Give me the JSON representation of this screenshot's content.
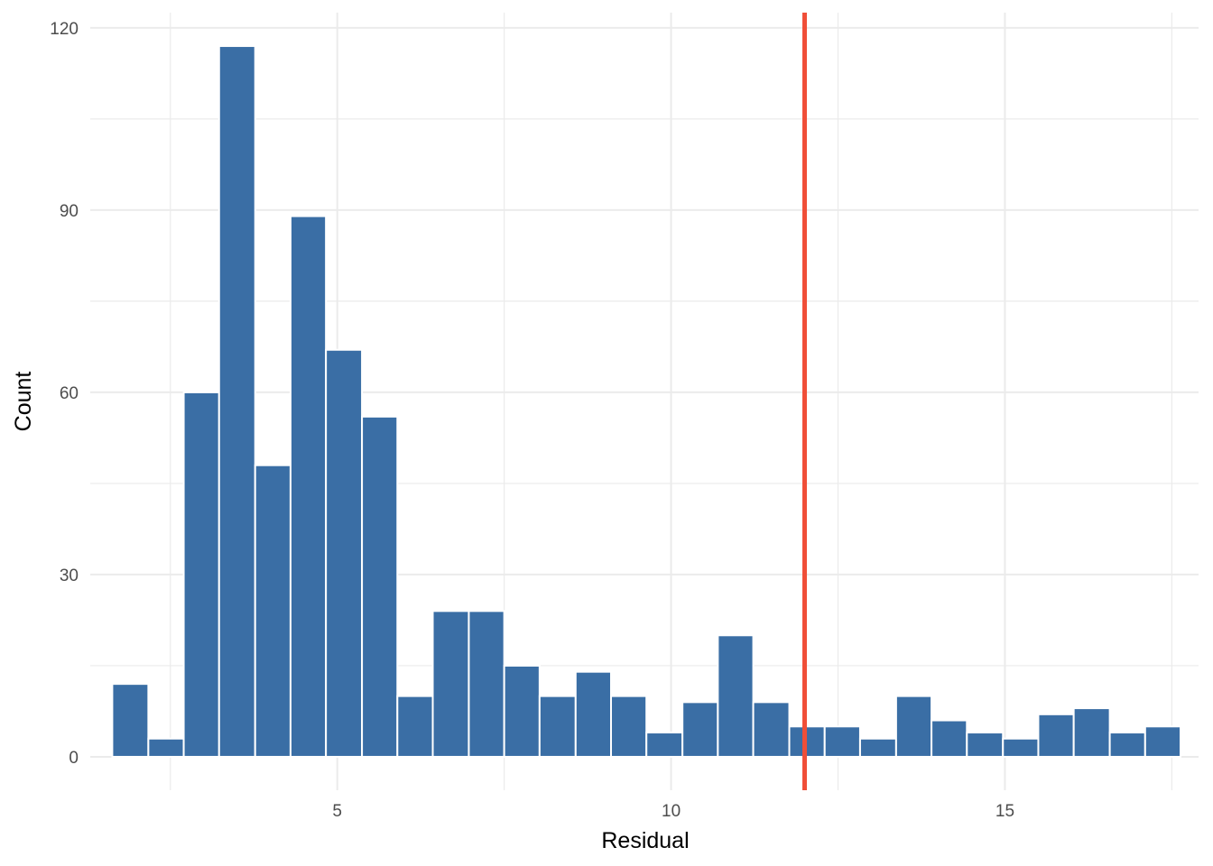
{
  "chart_data": {
    "type": "bar",
    "subtype": "histogram",
    "xlabel": "Residual",
    "ylabel": "Count",
    "xlim": [
      1.3,
      17.9
    ],
    "ylim": [
      -5.5,
      122.5
    ],
    "x_ticks": [
      5,
      10,
      15
    ],
    "y_ticks": [
      0,
      30,
      60,
      90,
      120
    ],
    "bin_width": 0.533,
    "bins": [
      {
        "x0": 1.63,
        "x1": 2.17,
        "count": 12
      },
      {
        "x0": 2.17,
        "x1": 2.7,
        "count": 3
      },
      {
        "x0": 2.7,
        "x1": 3.23,
        "count": 60
      },
      {
        "x0": 3.23,
        "x1": 3.77,
        "count": 117
      },
      {
        "x0": 3.77,
        "x1": 4.3,
        "count": 48
      },
      {
        "x0": 4.3,
        "x1": 4.83,
        "count": 89
      },
      {
        "x0": 4.83,
        "x1": 5.37,
        "count": 67
      },
      {
        "x0": 5.37,
        "x1": 5.9,
        "count": 56
      },
      {
        "x0": 5.9,
        "x1": 6.43,
        "count": 10
      },
      {
        "x0": 6.43,
        "x1": 6.97,
        "count": 24
      },
      {
        "x0": 6.97,
        "x1": 7.5,
        "count": 24
      },
      {
        "x0": 7.5,
        "x1": 8.03,
        "count": 15
      },
      {
        "x0": 8.03,
        "x1": 8.57,
        "count": 10
      },
      {
        "x0": 8.57,
        "x1": 9.1,
        "count": 14
      },
      {
        "x0": 9.1,
        "x1": 9.63,
        "count": 10
      },
      {
        "x0": 9.63,
        "x1": 10.17,
        "count": 4
      },
      {
        "x0": 10.17,
        "x1": 10.7,
        "count": 9
      },
      {
        "x0": 10.7,
        "x1": 11.23,
        "count": 20
      },
      {
        "x0": 11.23,
        "x1": 11.77,
        "count": 9
      },
      {
        "x0": 11.77,
        "x1": 12.3,
        "count": 5
      },
      {
        "x0": 12.3,
        "x1": 12.83,
        "count": 5
      },
      {
        "x0": 12.83,
        "x1": 13.37,
        "count": 3
      },
      {
        "x0": 13.37,
        "x1": 13.9,
        "count": 10
      },
      {
        "x0": 13.9,
        "x1": 14.43,
        "count": 6
      },
      {
        "x0": 14.43,
        "x1": 14.97,
        "count": 4
      },
      {
        "x0": 14.97,
        "x1": 15.5,
        "count": 3
      },
      {
        "x0": 15.5,
        "x1": 16.03,
        "count": 7
      },
      {
        "x0": 16.03,
        "x1": 16.57,
        "count": 8
      },
      {
        "x0": 16.57,
        "x1": 17.1,
        "count": 4
      },
      {
        "x0": 17.1,
        "x1": 17.63,
        "count": 5
      }
    ],
    "reference_line": {
      "x": 12.0,
      "orientation": "vertical"
    },
    "grid": true,
    "legend": "none",
    "colors": {
      "bar_fill": "#3a6ea5",
      "bar_outline": "#ffffff",
      "reference_line": "#f04e37",
      "grid": "#ebebeb"
    }
  }
}
